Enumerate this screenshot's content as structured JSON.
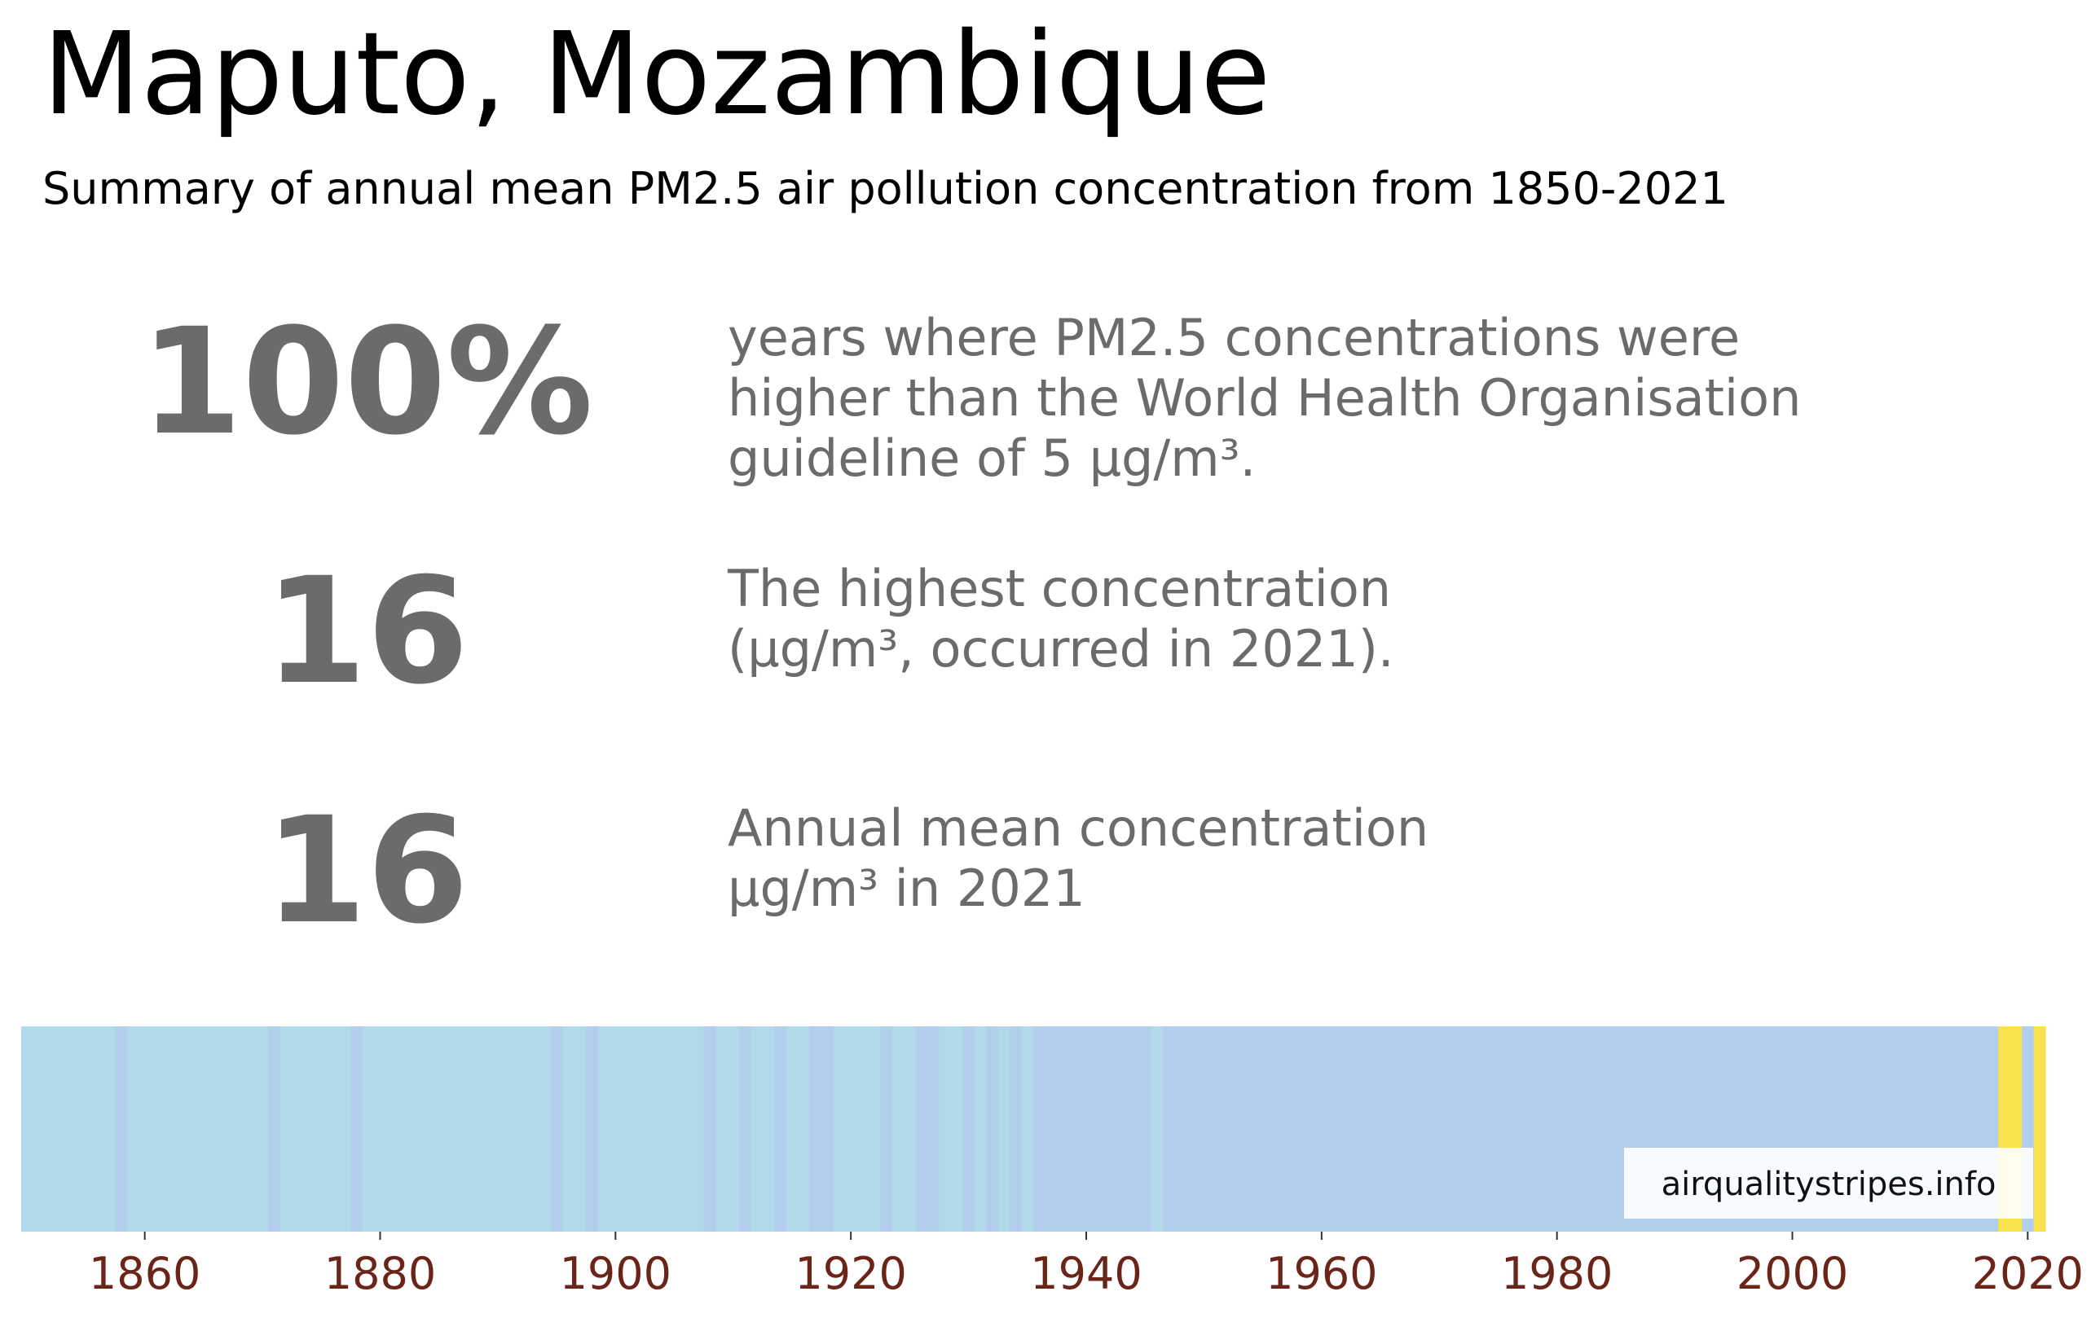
{
  "header": {
    "title": "Maputo, Mozambique",
    "subtitle": "Summary of annual mean PM2.5 air pollution concentration from 1850-2021"
  },
  "stats": [
    {
      "value": "100%",
      "lines": [
        "years where PM2.5 concentrations were",
        "higher than the World Health Organisation",
        "guideline of 5 µg/m³."
      ]
    },
    {
      "value": "16",
      "lines": [
        "The highest concentration",
        "(µg/m³, occurred in 2021)."
      ]
    },
    {
      "value": "16",
      "lines": [
        "Annual mean concentration",
        "µg/m³ in 2021"
      ]
    }
  ],
  "watermark": "airqualitystripes.info",
  "colors": {
    "light_blue": "#b1d9e9",
    "mid_blue": "#b1cfec",
    "yellow": "#f9e04d",
    "tick_label": "#6b2418",
    "stat_text": "#6b6b6b"
  },
  "chart_data": {
    "type": "heatmap",
    "x_range": [
      1850,
      2021
    ],
    "xticks": [
      1860,
      1880,
      1900,
      1920,
      1940,
      1960,
      1980,
      2000,
      2020
    ],
    "segments": [
      {
        "start": 1850,
        "end": 1857,
        "color": "#b1d9e9"
      },
      {
        "start": 1858,
        "end": 1858,
        "color": "#b1cfec"
      },
      {
        "start": 1859,
        "end": 1870,
        "color": "#b1d9e9"
      },
      {
        "start": 1871,
        "end": 1871,
        "color": "#b1cfec"
      },
      {
        "start": 1872,
        "end": 1877,
        "color": "#b1d9e9"
      },
      {
        "start": 1878,
        "end": 1878,
        "color": "#b1cfec"
      },
      {
        "start": 1879,
        "end": 1894,
        "color": "#b1d9e9"
      },
      {
        "start": 1895,
        "end": 1895,
        "color": "#b1cfec"
      },
      {
        "start": 1896,
        "end": 1897,
        "color": "#b1d9e9"
      },
      {
        "start": 1898,
        "end": 1898,
        "color": "#b1cfec"
      },
      {
        "start": 1899,
        "end": 1907,
        "color": "#b1d9e9"
      },
      {
        "start": 1908,
        "end": 1908,
        "color": "#b1cfec"
      },
      {
        "start": 1909,
        "end": 1910,
        "color": "#b1d9e9"
      },
      {
        "start": 1911,
        "end": 1911,
        "color": "#b1cfec"
      },
      {
        "start": 1912,
        "end": 1913,
        "color": "#b1d9e9"
      },
      {
        "start": 1914,
        "end": 1914,
        "color": "#b1cfec"
      },
      {
        "start": 1915,
        "end": 1916,
        "color": "#b1d9e9"
      },
      {
        "start": 1917,
        "end": 1918,
        "color": "#b1cfec"
      },
      {
        "start": 1919,
        "end": 1922,
        "color": "#b1d9e9"
      },
      {
        "start": 1923,
        "end": 1923,
        "color": "#b1cfec"
      },
      {
        "start": 1924,
        "end": 1925,
        "color": "#b1d9e9"
      },
      {
        "start": 1926,
        "end": 1927,
        "color": "#b1cfec"
      },
      {
        "start": 1928,
        "end": 1929,
        "color": "#b1d9e9"
      },
      {
        "start": 1930,
        "end": 1930,
        "color": "#b1cfec"
      },
      {
        "start": 1931,
        "end": 1931,
        "color": "#b1d9e9"
      },
      {
        "start": 1932,
        "end": 1932,
        "color": "#b1cfec"
      },
      {
        "start": 1933,
        "end": 1933,
        "color": "#b1d9e9"
      },
      {
        "start": 1934,
        "end": 1934,
        "color": "#b1cfec"
      },
      {
        "start": 1935,
        "end": 1935,
        "color": "#b1d9e9"
      },
      {
        "start": 1936,
        "end": 1945,
        "color": "#b1cfec"
      },
      {
        "start": 1946,
        "end": 1946,
        "color": "#b1d9e9"
      },
      {
        "start": 1947,
        "end": 2017,
        "color": "#b1cfec"
      },
      {
        "start": 2018,
        "end": 2019,
        "color": "#f9e04d"
      },
      {
        "start": 2020,
        "end": 2020,
        "color": "#b1cfec"
      },
      {
        "start": 2021,
        "end": 2021,
        "color": "#f9e04d"
      }
    ]
  }
}
